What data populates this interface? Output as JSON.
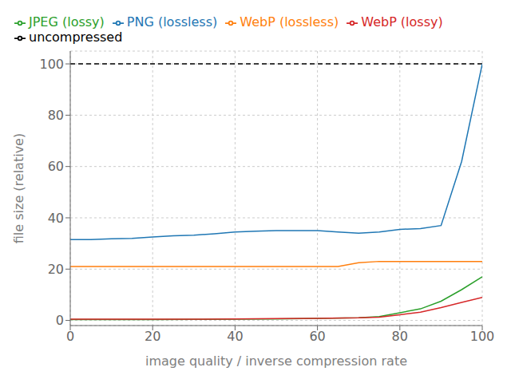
{
  "chart_data": {
    "type": "line",
    "xlabel": "image quality / inverse compression rate",
    "ylabel": "file size (relative)",
    "xlim": [
      0,
      100
    ],
    "ylim": [
      -2,
      105
    ],
    "xticks": [
      0,
      20,
      40,
      60,
      80,
      100
    ],
    "yticks": [
      0,
      20,
      40,
      60,
      80,
      100
    ],
    "grid": true,
    "legend": "upper left",
    "series": [
      {
        "name": "uncompressed",
        "color": "#000000",
        "line_style": "dashed",
        "x": [
          0,
          100
        ],
        "values": [
          100,
          100
        ]
      },
      {
        "name": "PNG (lossless)",
        "color": "#1f77b4",
        "line_style": "solid",
        "x": [
          0,
          5,
          10,
          15,
          20,
          25,
          30,
          35,
          40,
          45,
          50,
          55,
          60,
          65,
          70,
          75,
          80,
          85,
          90,
          95,
          100
        ],
        "values": [
          31.5,
          31.5,
          31.8,
          32.0,
          32.5,
          33.0,
          33.2,
          33.8,
          34.5,
          34.8,
          35.0,
          35.0,
          35.0,
          34.5,
          34.0,
          34.5,
          35.5,
          35.8,
          37.0,
          62.0,
          100.0
        ]
      },
      {
        "name": "WebP (lossless)",
        "color": "#ff7f0e",
        "line_style": "solid",
        "x": [
          0,
          10,
          20,
          30,
          40,
          50,
          60,
          65,
          70,
          75,
          80,
          85,
          90,
          95,
          100
        ],
        "values": [
          21.0,
          21.0,
          21.0,
          21.0,
          21.0,
          21.0,
          21.0,
          21.0,
          22.5,
          23.0,
          23.0,
          23.0,
          23.0,
          23.0,
          23.0
        ]
      },
      {
        "name": "JPEG (lossy)",
        "color": "#2ca02c",
        "line_style": "solid",
        "x": [
          0,
          10,
          20,
          30,
          40,
          50,
          60,
          70,
          75,
          80,
          85,
          90,
          95,
          100
        ],
        "values": [
          0.3,
          0.3,
          0.3,
          0.4,
          0.5,
          0.6,
          0.8,
          1.0,
          1.5,
          3.0,
          4.5,
          7.5,
          12.0,
          17.0
        ]
      },
      {
        "name": "WebP (lossy)",
        "color": "#d62728",
        "line_style": "solid",
        "x": [
          0,
          10,
          20,
          30,
          40,
          50,
          60,
          70,
          75,
          80,
          85,
          90,
          95,
          100
        ],
        "values": [
          0.5,
          0.5,
          0.5,
          0.5,
          0.6,
          0.7,
          0.8,
          1.0,
          1.3,
          2.2,
          3.2,
          5.0,
          7.0,
          9.0
        ]
      }
    ]
  }
}
